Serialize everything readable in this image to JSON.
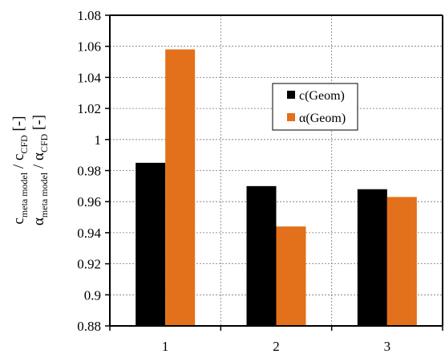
{
  "chart_data": {
    "type": "bar",
    "categories": [
      "1",
      "2",
      "3"
    ],
    "series": [
      {
        "name": "c(Geom)",
        "values": [
          0.985,
          0.97,
          0.968
        ],
        "color": "#000000"
      },
      {
        "name": "α(Geom)",
        "values": [
          1.058,
          0.944,
          0.963
        ],
        "color": "#e3701a"
      }
    ],
    "ylim": [
      0.88,
      1.08
    ],
    "yticks": [
      "0.88",
      "0.9",
      "0.92",
      "0.94",
      "0.96",
      "0.98",
      "1",
      "1.02",
      "1.04",
      "1.06",
      "1.08"
    ],
    "ylabel": {
      "line1_main": "c",
      "line1_sub": "meta model",
      "line1_mid": " / c",
      "line1_sub2": "CFD",
      "line1_unit": " [-]",
      "line2_main": "α",
      "line2_sub": "meta model",
      "line2_mid": " / α",
      "line2_sub2": "CFD",
      "line2_unit": " [-]"
    },
    "grid": true,
    "legend_position": "upper-middle"
  }
}
